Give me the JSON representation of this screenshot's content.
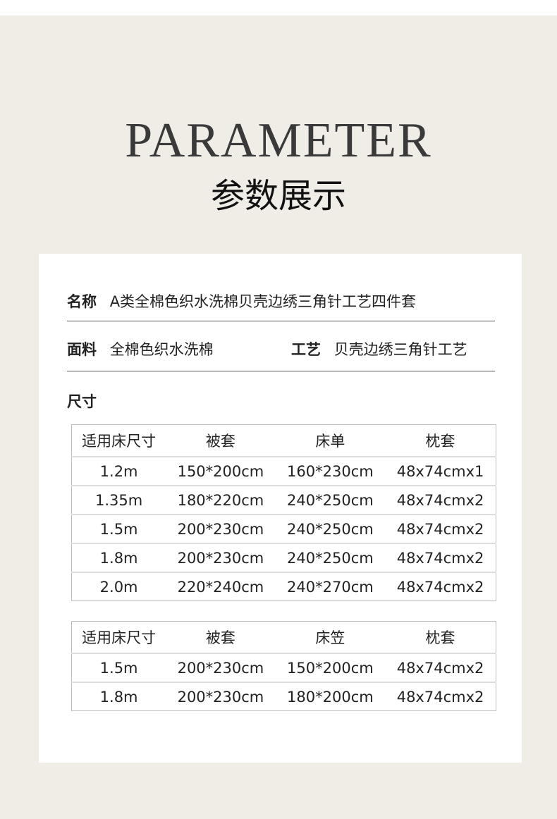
{
  "title_en": "PARAMETER",
  "title_cn": "参数展示",
  "name": {
    "label": "名称",
    "value": "A类全棉色织水洗棉贝壳边绣三角针工艺四件套"
  },
  "fabric": {
    "label": "面料",
    "value": "全棉色织水洗棉"
  },
  "craft": {
    "label": "工艺",
    "value": "贝壳边绣三角针工艺"
  },
  "size_label": "尺寸",
  "table1": {
    "headers": [
      "适用床尺寸",
      "被套",
      "床单",
      "枕套"
    ],
    "rows": [
      [
        "1.2m",
        "150*200cm",
        "160*230cm",
        "48x74cmx1"
      ],
      [
        "1.35m",
        "180*220cm",
        "240*250cm",
        "48x74cmx2"
      ],
      [
        "1.5m",
        "200*230cm",
        "240*250cm",
        "48x74cmx2"
      ],
      [
        "1.8m",
        "200*230cm",
        "240*250cm",
        "48x74cmx2"
      ],
      [
        "2.0m",
        "220*240cm",
        "240*270cm",
        "48x74cmx2"
      ]
    ]
  },
  "table2": {
    "headers": [
      "适用床尺寸",
      "被套",
      "床笠",
      "枕套"
    ],
    "rows": [
      [
        "1.5m",
        "200*230cm",
        "150*200cm",
        "48x74cmx2"
      ],
      [
        "1.8m",
        "200*230cm",
        "180*200cm",
        "48x74cmx2"
      ]
    ]
  }
}
